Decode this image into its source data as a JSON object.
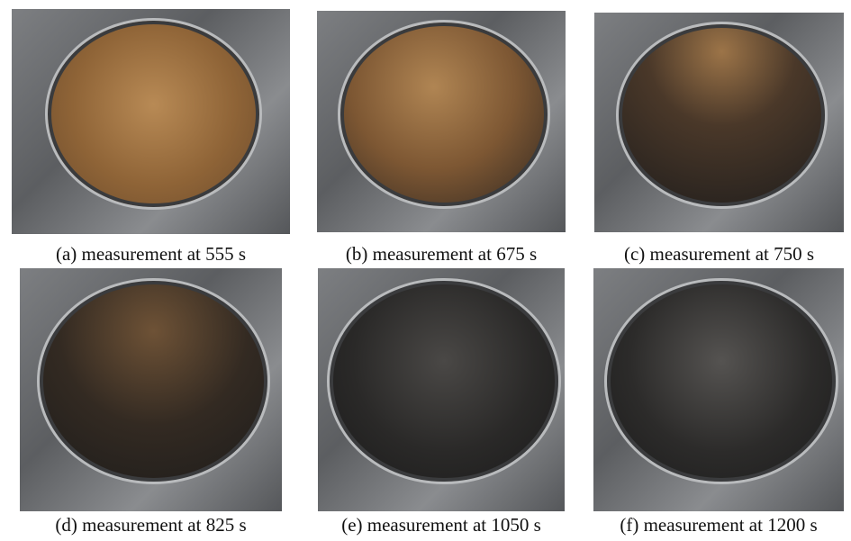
{
  "panels": [
    {
      "label": "(a)",
      "caption": "measurement at 555 s"
    },
    {
      "label": "(b)",
      "caption": "measurement at 675 s"
    },
    {
      "label": "(c)",
      "caption": "measurement at 750 s"
    },
    {
      "label": "(d)",
      "caption": "measurement at 825 s"
    },
    {
      "label": "(e)",
      "caption": "measurement at 1050 s"
    },
    {
      "label": "(f)",
      "caption": "measurement at 1200 s"
    }
  ]
}
